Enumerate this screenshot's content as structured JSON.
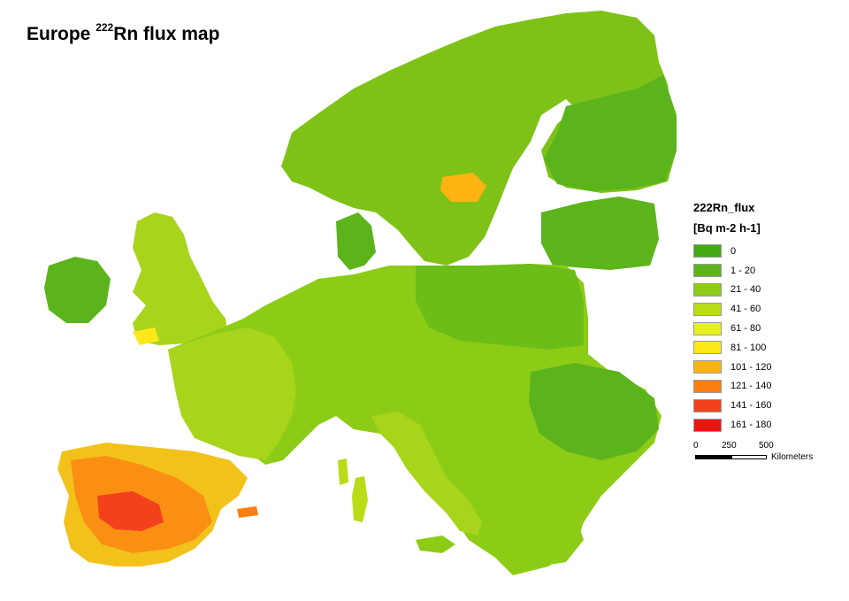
{
  "title": {
    "main": "Europe ",
    "sup": "222",
    "rest": "Rn flux map"
  },
  "legend": {
    "title": "222Rn_flux",
    "unit": "[Bq m-2 h-1]",
    "classes": [
      {
        "label": "0",
        "color": "#3faa12"
      },
      {
        "label": "1 - 20",
        "color": "#5cb41c"
      },
      {
        "label": "21 - 40",
        "color": "#8ccc16"
      },
      {
        "label": "41 - 60",
        "color": "#b8dc16"
      },
      {
        "label": "61 - 80",
        "color": "#e6f01a"
      },
      {
        "label": "81 - 100",
        "color": "#ffe81a"
      },
      {
        "label": "101 - 120",
        "color": "#fdb310"
      },
      {
        "label": "121 - 140",
        "color": "#fa7e12"
      },
      {
        "label": "141 - 160",
        "color": "#f3421b"
      },
      {
        "label": "161 - 180",
        "color": "#ee1212"
      }
    ]
  },
  "scale": {
    "ticks": [
      "0",
      "250",
      "500"
    ],
    "unit": "Kilometers"
  }
}
